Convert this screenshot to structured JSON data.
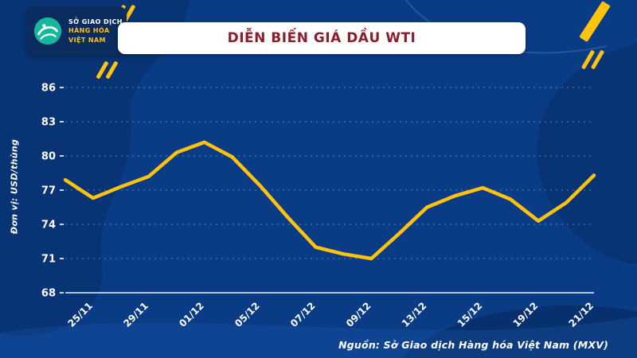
{
  "title": "DIỄN BIẾN GIÁ DẦU WTI",
  "source": "Nguồn: Sở Giao dịch Hàng hóa Việt Nam (MXV)",
  "brand": {
    "logo_lines": [
      "SỞ GIAO DỊCH",
      "HÀNG HÓA",
      "VIỆT NAM"
    ]
  },
  "colors": {
    "background": "#0a3c85",
    "line_yellow": "#FFC20E",
    "title_red": "#8b1d2e",
    "logo_teal": "#15b79d",
    "text_white": "#ffffff"
  },
  "chart_data": {
    "type": "line",
    "title": "DIỄN BIẾN GIÁ DẦU WTI",
    "xlabel": "",
    "ylabel": "Đơn vị: USD/thùng",
    "ylim": [
      68,
      86
    ],
    "yticks": [
      68,
      71,
      74,
      77,
      80,
      83,
      86
    ],
    "grid": "horizontal-dashed",
    "legend": "none",
    "x_tick_labels": [
      "25/11",
      "29/11",
      "01/12",
      "05/12",
      "07/12",
      "09/12",
      "13/12",
      "15/12",
      "19/12",
      "21/12"
    ],
    "series": [
      {
        "name": "WTI",
        "color": "#FFC20E",
        "values": [
          77.9,
          76.3,
          77.3,
          78.2,
          80.3,
          81.2,
          79.9,
          77.4,
          74.6,
          72.0,
          71.4,
          71.0,
          73.2,
          75.5,
          76.5,
          77.2,
          76.2,
          74.3,
          75.9,
          78.3
        ]
      }
    ]
  }
}
